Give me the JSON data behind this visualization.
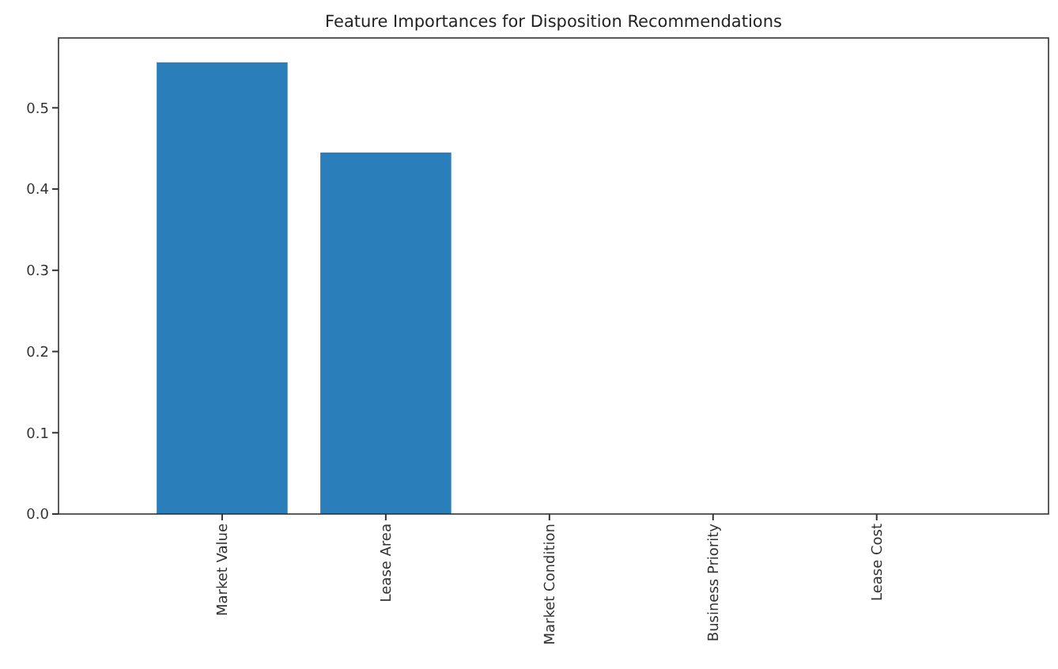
{
  "chart_data": {
    "type": "bar",
    "title": "Feature Importances for Disposition Recommendations",
    "categories": [
      "Market Value",
      "Lease Area",
      "Market Condition",
      "Business Priority",
      "Lease Cost"
    ],
    "values": [
      0.556,
      0.445,
      0,
      0,
      0
    ],
    "color": "#2a7fba",
    "ylim": [
      0,
      0.586
    ],
    "yticks": [
      {
        "value": 0,
        "label": "0.0"
      },
      {
        "value": 0.1,
        "label": "0.1"
      },
      {
        "value": 0.2,
        "label": "0.2"
      },
      {
        "value": 0.3,
        "label": "0.3"
      },
      {
        "value": 0.4,
        "label": "0.4"
      },
      {
        "value": 0.5,
        "label": "0.5"
      }
    ],
    "grid": false
  }
}
